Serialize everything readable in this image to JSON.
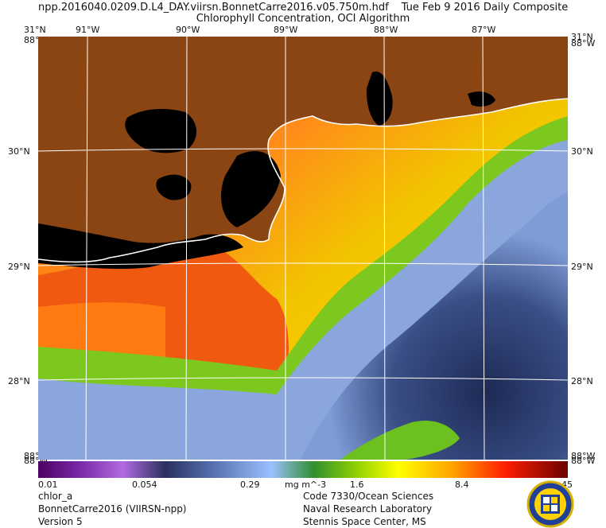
{
  "header": {
    "filename": "npp.2016040.0209.D.L4_DAY.viirsn.BonnetCarre2016.v05.750m.hdf",
    "date": "Tue Feb  9 2016 Daily Composite",
    "subtitle": "Chlorophyll Concentration, OCI Algorithm"
  },
  "axes": {
    "lon_labels": [
      "91°W",
      "90°W",
      "89°W",
      "88°W",
      "87°W"
    ],
    "lat_labels": [
      "30°N",
      "29°N",
      "28°N"
    ],
    "corner_top_lat": "31°N",
    "corner_top_lon": "88°W",
    "corner_bottom_lat": "88°W",
    "corner_bottom_lon": "88°W"
  },
  "colorbar": {
    "ticks": [
      "0.01",
      "0.054",
      "0.29",
      "1.6",
      "8.4",
      "45"
    ],
    "unit": "mg m^-3"
  },
  "footer": {
    "left": [
      "chlor_a",
      "BonnetCarre2016 (VIIRSN-npp)",
      "Version 5"
    ],
    "right": [
      "Code 7330/Ocean Sciences",
      "Naval Research Laboratory",
      "Stennis Space Center, MS"
    ]
  },
  "colors": {
    "land": "#8b4513",
    "nodata": "#000000",
    "grid": "#ffffff"
  },
  "icons": {
    "logo": "nrl-seal-icon"
  }
}
